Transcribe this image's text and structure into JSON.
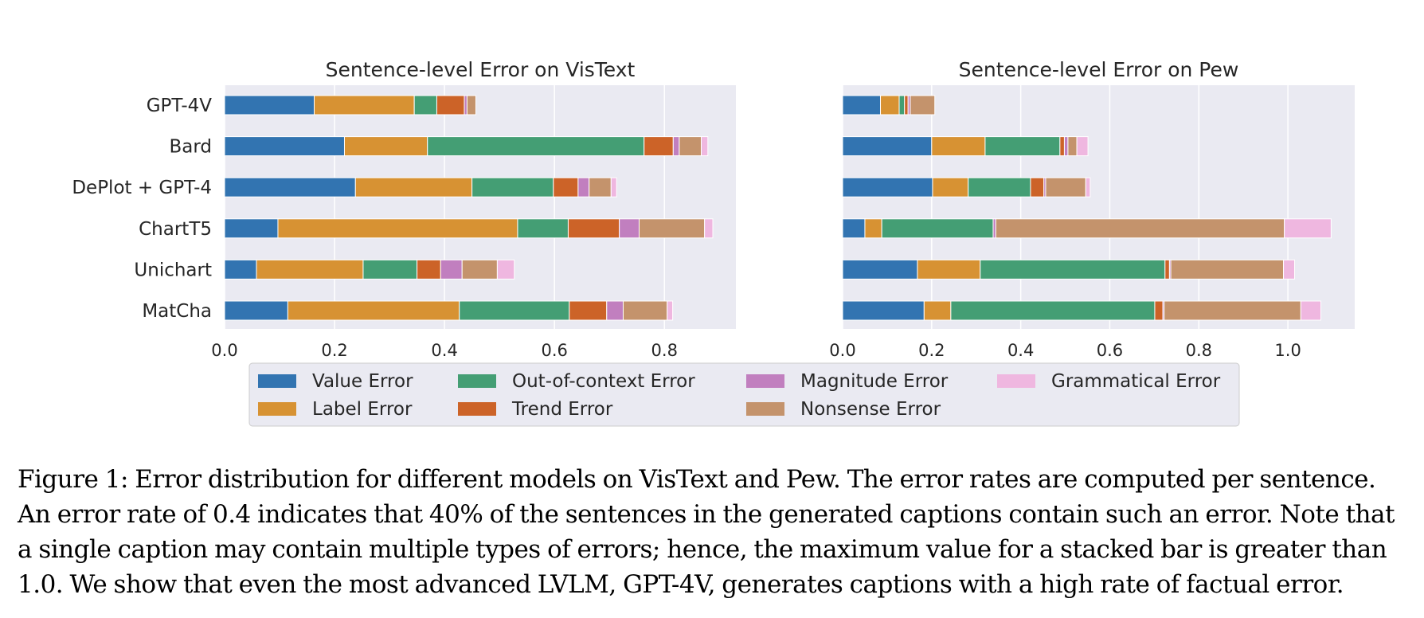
{
  "chart_data": [
    {
      "type": "bar",
      "orientation": "horizontal",
      "stacked": true,
      "title": "Sentence-level Error on VisText",
      "categories": [
        "GPT-4V",
        "Bard",
        "DePlot + GPT-4",
        "ChartT5",
        "Unichart",
        "MatCha"
      ],
      "xlim": [
        0,
        0.93
      ],
      "xticks": [
        0.0,
        0.2,
        0.4,
        0.6,
        0.8
      ],
      "xtick_labels": [
        "0.0",
        "0.2",
        "0.4",
        "0.6",
        "0.8"
      ],
      "grid": true,
      "series": [
        {
          "name": "Value Error",
          "values": [
            0.163,
            0.218,
            0.238,
            0.097,
            0.058,
            0.115
          ]
        },
        {
          "name": "Label Error",
          "values": [
            0.182,
            0.151,
            0.212,
            0.436,
            0.194,
            0.312
          ]
        },
        {
          "name": "Out-of-context Error",
          "values": [
            0.041,
            0.394,
            0.148,
            0.092,
            0.098,
            0.2
          ]
        },
        {
          "name": "Trend Error",
          "values": [
            0.05,
            0.053,
            0.045,
            0.093,
            0.043,
            0.068
          ]
        },
        {
          "name": "Magnitude Error",
          "values": [
            0.005,
            0.011,
            0.02,
            0.036,
            0.039,
            0.03
          ]
        },
        {
          "name": "Nonsense Error",
          "values": [
            0.016,
            0.04,
            0.04,
            0.119,
            0.064,
            0.08
          ]
        },
        {
          "name": "Grammatical Error",
          "values": [
            0.0,
            0.012,
            0.01,
            0.015,
            0.031,
            0.01
          ]
        }
      ]
    },
    {
      "type": "bar",
      "orientation": "horizontal",
      "stacked": true,
      "title": "Sentence-level Error on Pew",
      "categories": [
        "GPT-4V",
        "Bard",
        "DePlot + GPT-4",
        "ChartT5",
        "Unichart",
        "MatCha"
      ],
      "xlim": [
        0,
        1.15
      ],
      "xticks": [
        0.0,
        0.2,
        0.4,
        0.6,
        0.8,
        1.0
      ],
      "xtick_labels": [
        "0.0",
        "0.2",
        "0.4",
        "0.6",
        "0.8",
        "1.0"
      ],
      "grid": true,
      "series": [
        {
          "name": "Value Error",
          "values": [
            0.085,
            0.2,
            0.202,
            0.05,
            0.168,
            0.183
          ]
        },
        {
          "name": "Label Error",
          "values": [
            0.042,
            0.12,
            0.08,
            0.038,
            0.141,
            0.06
          ]
        },
        {
          "name": "Out-of-context Error",
          "values": [
            0.012,
            0.168,
            0.14,
            0.25,
            0.415,
            0.458
          ]
        },
        {
          "name": "Trend Error",
          "values": [
            0.008,
            0.01,
            0.03,
            0.0,
            0.01,
            0.018
          ]
        },
        {
          "name": "Magnitude Error",
          "values": [
            0.005,
            0.008,
            0.004,
            0.006,
            0.003,
            0.003
          ]
        },
        {
          "name": "Nonsense Error",
          "values": [
            0.055,
            0.02,
            0.09,
            0.648,
            0.253,
            0.307
          ]
        },
        {
          "name": "Grammatical Error",
          "values": [
            0.0,
            0.025,
            0.01,
            0.105,
            0.025,
            0.045
          ]
        }
      ]
    }
  ],
  "legend": {
    "placement": "bottom-center",
    "items": [
      {
        "label": "Value Error",
        "color": "#3274b1"
      },
      {
        "label": "Out-of-context Error",
        "color": "#449e74"
      },
      {
        "label": "Magnitude Error",
        "color": "#c17fbf"
      },
      {
        "label": "Grammatical Error",
        "color": "#efb7e0"
      },
      {
        "label": "Label Error",
        "color": "#d79233"
      },
      {
        "label": "Trend Error",
        "color": "#cc6328"
      },
      {
        "label": "Nonsense Error",
        "color": "#c4936c"
      }
    ]
  },
  "colors": {
    "panel_background": "#eaeaf2",
    "grid": "#ffffff"
  },
  "caption": {
    "text": "Figure 1: Error distribution for different models on VisText and Pew. The error rates are computed per sentence. An error rate of 0.4 indicates that 40% of the sentences in the generated captions contain such an error. Note that a single caption may contain multiple types of errors; hence, the maximum value for a stacked bar is greater than 1.0. We show that even the most advanced LVLM, GPT-4V, generates captions with a high rate of factual error."
  }
}
